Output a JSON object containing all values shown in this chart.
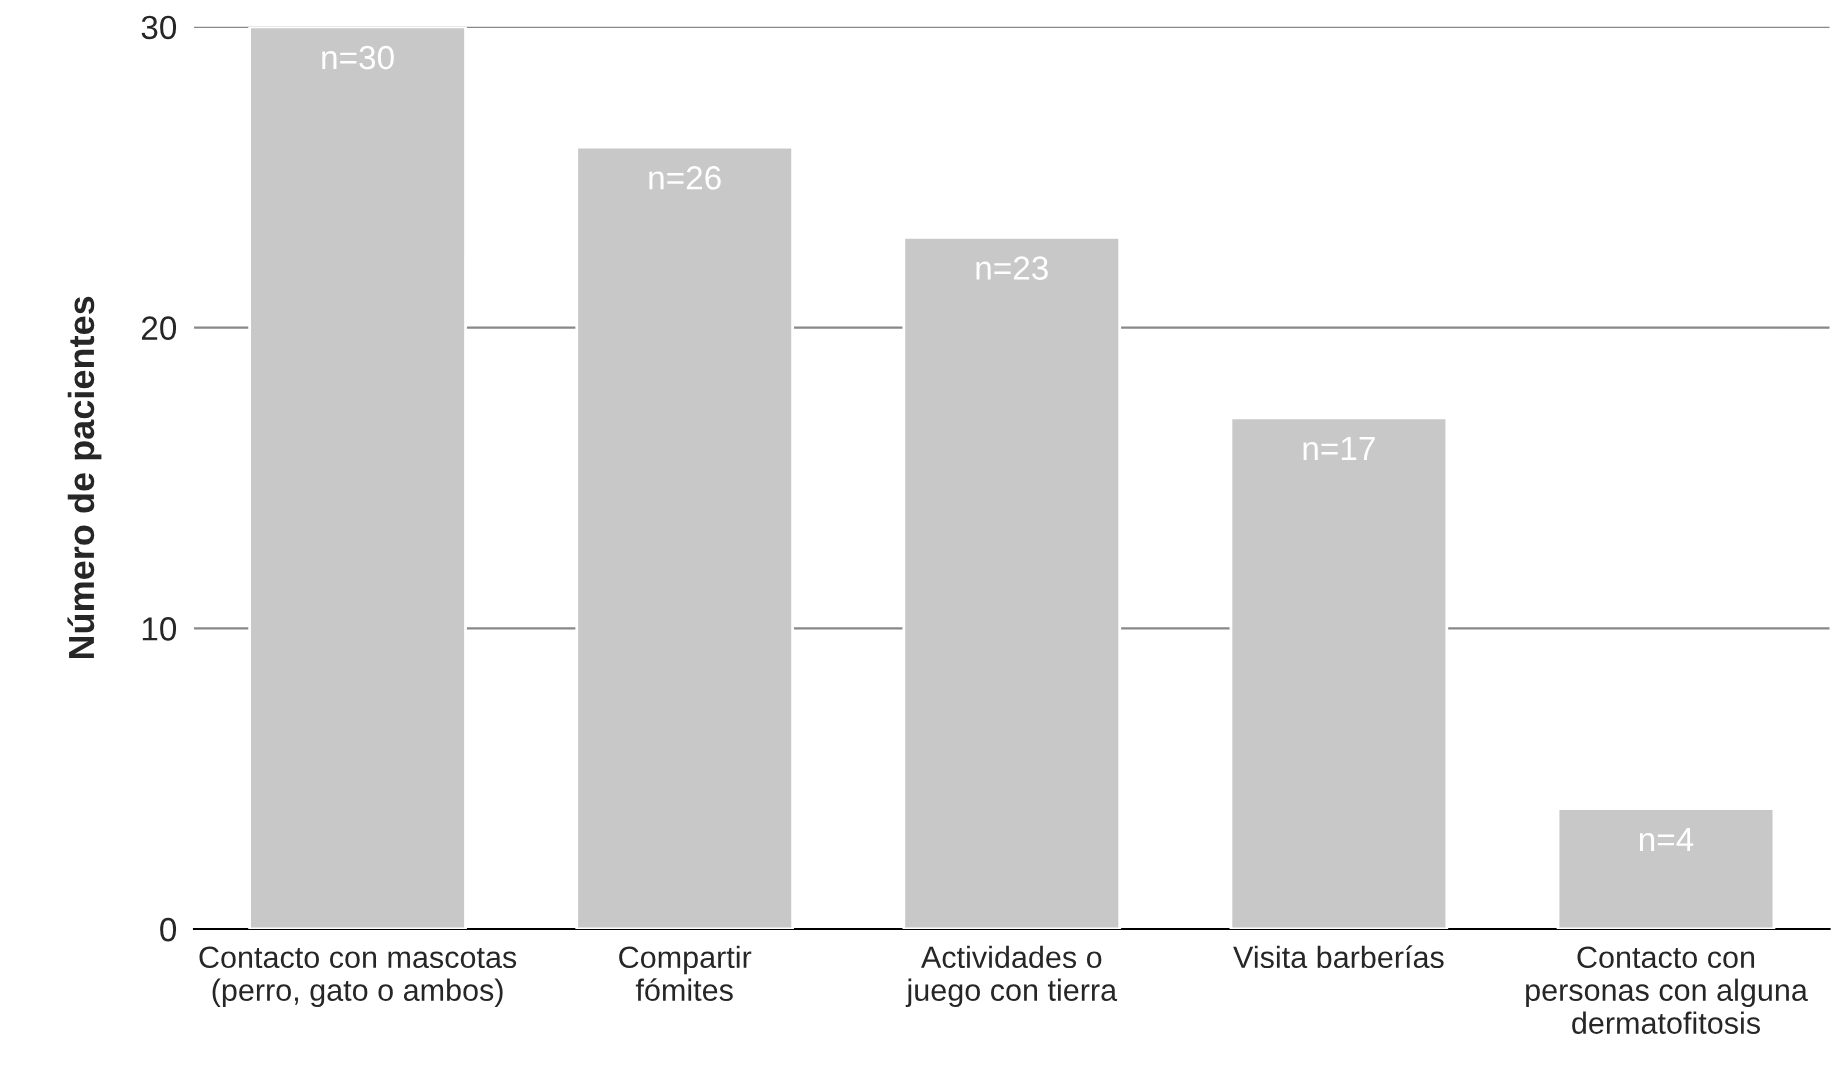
{
  "chart_data": {
    "type": "bar",
    "ylabel": "Número de pacientes",
    "categories": [
      "Contacto con mascotas\n(perro, gato o ambos)",
      "Compartir\nfómites",
      "Actividades o\njuego con tierra",
      "Visita barberías",
      "Contacto con\npersonas con alguna\ndermatofitosis"
    ],
    "values": [
      30,
      26,
      23,
      17,
      4
    ],
    "value_labels": [
      "n=30",
      "n=26",
      "n=23",
      "n=17",
      "n=4"
    ],
    "color": "#c8c8c8",
    "ylim": [
      0,
      30
    ],
    "yticks": [
      0,
      10,
      20,
      30
    ],
    "grid": "y",
    "legend": false
  }
}
